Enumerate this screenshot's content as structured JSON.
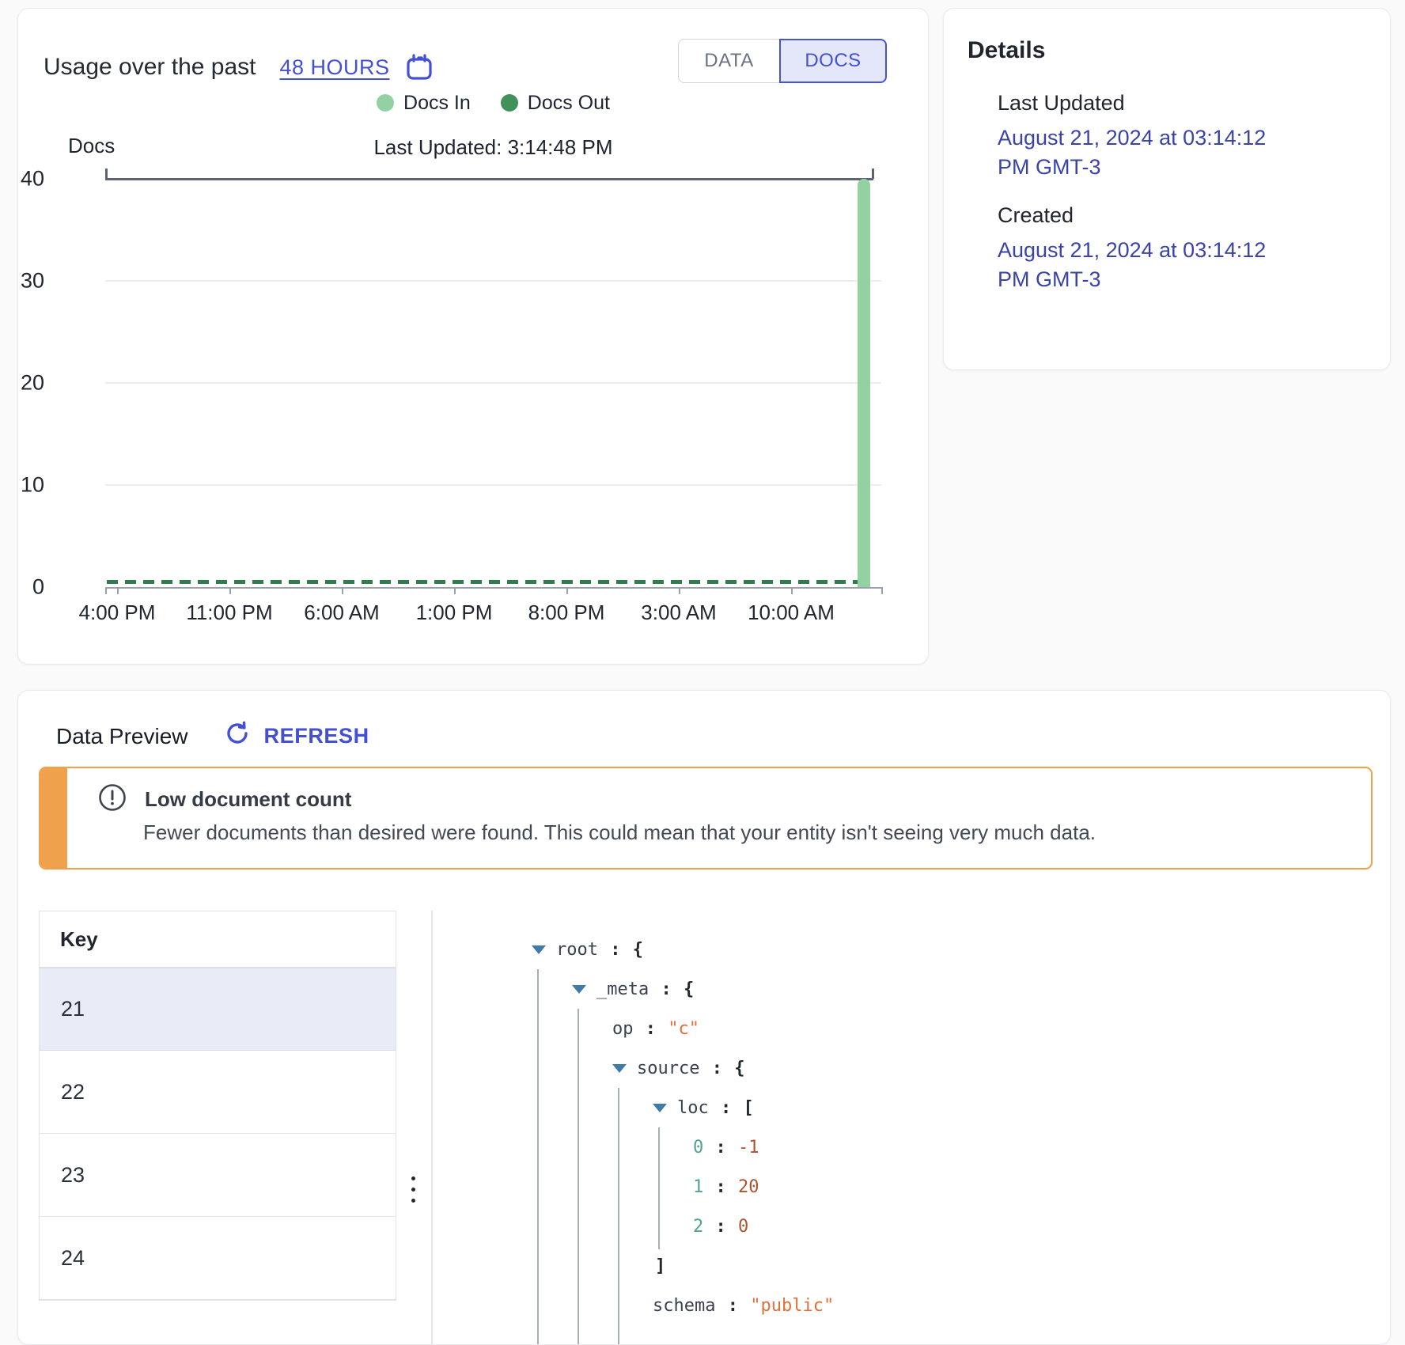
{
  "usage": {
    "title": "Usage over the past",
    "range_label": "48 HOURS",
    "toggle": {
      "data_label": "DATA",
      "docs_label": "DOCS",
      "active": "DOCS"
    },
    "legend": [
      {
        "label": "Docs In",
        "color": "#92d2a2"
      },
      {
        "label": "Docs Out",
        "color": "#41925a"
      }
    ],
    "chart_data": {
      "type": "bar",
      "title": "Last Updated: 3:14:48 PM",
      "y_axis_title": "Docs",
      "ylim": [
        0,
        40
      ],
      "y_ticks": [
        40,
        30,
        20,
        10,
        0
      ],
      "x_tick_labels": [
        "4:00 PM",
        "11:00 PM",
        "6:00 AM",
        "1:00 PM",
        "8:00 PM",
        "3:00 AM",
        "10:00 AM"
      ],
      "grid": true,
      "legend_position": "top",
      "series": [
        {
          "name": "Docs In",
          "color": "#92d2a2",
          "values_note": "flat at 0 across 48h, single spike at latest interval",
          "spike_value": 40
        },
        {
          "name": "Docs Out",
          "color": "#2f7d4d",
          "values_note": "flat at 0 across 48h (dashed baseline)",
          "flat_value": 0
        }
      ]
    }
  },
  "details": {
    "title": "Details",
    "items": [
      {
        "label": "Last Updated",
        "value_line1": "August 21, 2024 at 03:14:12",
        "value_line2": "PM GMT-3"
      },
      {
        "label": "Created",
        "value_line1": "August 21, 2024 at 03:14:12",
        "value_line2": "PM GMT-3"
      }
    ]
  },
  "preview": {
    "title": "Data Preview",
    "refresh_label": "REFRESH",
    "alert": {
      "title": "Low document count",
      "message": "Fewer documents than desired were found. This could mean that your entity isn't seeing very much data.",
      "color": "#f0a14c"
    },
    "table": {
      "header": "Key",
      "rows": [
        "21",
        "22",
        "23",
        "24"
      ],
      "selected": "21"
    },
    "json_tree": [
      {
        "level": 0,
        "arrow": true,
        "key": "root",
        "bracket": "{"
      },
      {
        "level": 1,
        "arrow": true,
        "key": "_meta",
        "bracket": "{"
      },
      {
        "level": 2,
        "arrow": false,
        "key": "op",
        "value": "\"c\"",
        "vtype": "string"
      },
      {
        "level": 2,
        "arrow": true,
        "key": "source",
        "bracket": "{"
      },
      {
        "level": 3,
        "arrow": true,
        "key": "loc",
        "bracket": "["
      },
      {
        "level": 4,
        "arrow": false,
        "key": "0",
        "ktype": "index",
        "value": "-1",
        "vtype": "number"
      },
      {
        "level": 4,
        "arrow": false,
        "key": "1",
        "ktype": "index",
        "value": "20",
        "vtype": "number"
      },
      {
        "level": 4,
        "arrow": false,
        "key": "2",
        "ktype": "index",
        "value": "0",
        "vtype": "number"
      },
      {
        "level": 3,
        "close": "]"
      },
      {
        "level": 3,
        "arrow": false,
        "key": "schema",
        "value": "\"public\"",
        "vtype": "string",
        "clipped": true
      }
    ]
  },
  "colors": {
    "accent_blue": "#4450d2",
    "date_blue": "#3a43a8",
    "docs_in_green": "#92d2a2",
    "docs_out_green": "#41925a",
    "dashed_green": "#2f7d4d",
    "alert_orange": "#f0a14c",
    "selected_row": "#e9ecf6",
    "top_axis_line": "#5b6472"
  }
}
